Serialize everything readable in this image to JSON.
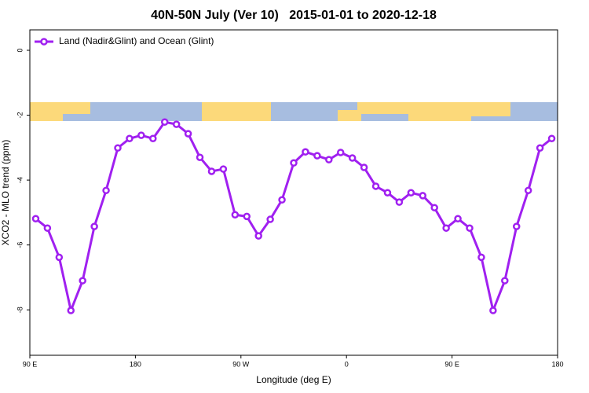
{
  "chart_data": {
    "type": "line",
    "title": "40N-50N July (Ver 10)   2015-01-01 to 2020-12-18",
    "x_label": "Longitude (deg E)",
    "y_label": "XCO2 - MLO trend (ppm)",
    "x": [
      95,
      105,
      115,
      125,
      135,
      145,
      155,
      165,
      175,
      185,
      195,
      205,
      215,
      225,
      235,
      245,
      255,
      265,
      275,
      285,
      295,
      305,
      315,
      325,
      335,
      345,
      355,
      365,
      375,
      385,
      395,
      405,
      415,
      425,
      435,
      445,
      455,
      465,
      475,
      485,
      495,
      505,
      515,
      525,
      535
    ],
    "series": [
      {
        "name": "Land (Nadir&Glint) and Ocean (Glint)",
        "color": "#a020f0",
        "values": [
          -5.19,
          -5.48,
          -6.38,
          -8.02,
          -7.1,
          -5.43,
          -4.32,
          -3.01,
          -2.72,
          -2.62,
          -2.72,
          -2.21,
          -2.28,
          -2.57,
          -3.3,
          -3.73,
          -3.66,
          -5.07,
          -5.12,
          -5.72,
          -5.21,
          -4.61,
          -3.47,
          -3.13,
          -3.25,
          -3.37,
          -3.15,
          -3.32,
          -3.61,
          -4.19,
          -4.39,
          -4.68,
          -4.39,
          -4.48,
          -4.85,
          -5.48,
          -5.19,
          -5.48,
          -6.38,
          -8.02,
          -7.1,
          -5.43,
          -4.32,
          -3.01,
          -2.72
        ]
      }
    ],
    "xlim": [
      90,
      540
    ],
    "xticks": [
      {
        "value": 90,
        "label": "90 E"
      },
      180,
      {
        "value": 270,
        "label": "90 W"
      },
      {
        "value": 360,
        "label": "0"
      },
      {
        "value": 450,
        "label": "90 E"
      },
      {
        "value": 540,
        "label": "180"
      }
    ],
    "ylim": [
      -9.4,
      0.63
    ],
    "yticks": [
      -8,
      -6,
      -4,
      -2,
      0
    ],
    "legend": "top-left"
  }
}
